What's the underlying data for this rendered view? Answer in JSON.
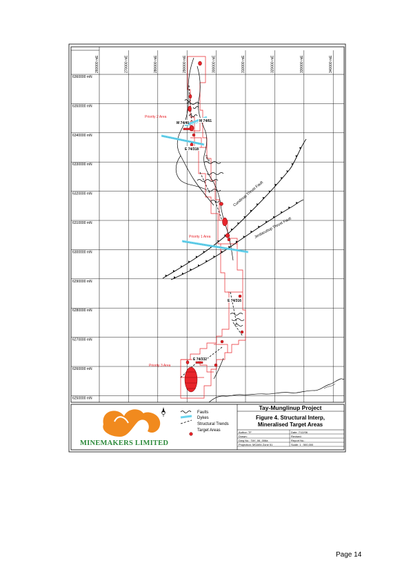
{
  "map": {
    "easting_labels": [
      "260000 mE",
      "270000 mE",
      "280000 mE",
      "290000 mE",
      "300000 mE",
      "310000 mE",
      "320000 mE",
      "330000 mE",
      "340000 mE"
    ],
    "northing_labels": [
      "6360000 mN",
      "6350000 mN",
      "6340000 mN",
      "6330000 mN",
      "6320000 mN",
      "6310000 mN",
      "6300000 mN",
      "6290000 mN",
      "6280000 mN",
      "6270000 mN",
      "6260000 mN",
      "6250000 mN"
    ],
    "priority_areas": [
      "Priority 2 Area",
      "Priority 1 Area",
      "Priority 3 Area"
    ],
    "tenements": [
      "M 74/40",
      "M 74/61",
      "E 74/318",
      "E 74/316",
      "E 74/332"
    ],
    "faults": [
      "Cundinup Thrust Fault",
      "Jerdacuttup Thrust Fault"
    ],
    "colors": {
      "tenement": "#e8242a",
      "dyke": "#6ad4ee",
      "priority": "#e8242a"
    }
  },
  "legend": {
    "north_arrow": "north-arrow-icon",
    "items": [
      "Faults",
      "Dykes",
      "Structural Trends",
      "Target Areas"
    ]
  },
  "company": {
    "name": "MINEMAKERS LIMITED"
  },
  "title_block": {
    "project": "Tay-Munglinup Project",
    "figure_title": "Figure 4. Structural Interp,",
    "figure_subtitle": "Mineralised Target Areas",
    "author": "Author: TF",
    "date": "Date: 7/12/06",
    "drawn": "Drawn:",
    "revised": "Revised:",
    "dwg": "Dwg No.: TAY_06_006a",
    "report": "Report No.:",
    "projection": "Projection: MGA94 Zone 51",
    "scale": "Scale: 1 : 500,000"
  },
  "page": {
    "number": "Page 14"
  }
}
